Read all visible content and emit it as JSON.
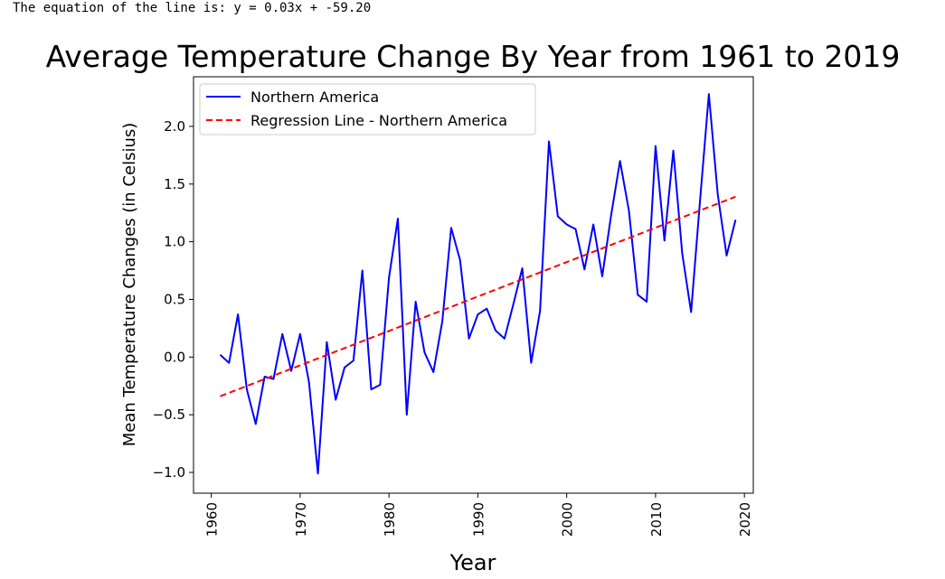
{
  "console": {
    "text": "The equation of the line is: y = 0.03x + -59.20"
  },
  "chart_data": {
    "type": "line",
    "title": "Average Temperature Change By Year from 1961 to 2019",
    "xlabel": "Year",
    "ylabel": "Mean Temperature Changes (in Celsius)",
    "xlim": [
      1958,
      2021
    ],
    "ylim": [
      -1.18,
      2.43
    ],
    "xticks": [
      1960,
      1970,
      1980,
      1990,
      2000,
      2010,
      2020
    ],
    "yticks": [
      -1.0,
      -0.5,
      0.0,
      0.5,
      1.0,
      1.5,
      2.0
    ],
    "ytick_labels": [
      "−1.0",
      "−0.5",
      "0.0",
      "0.5",
      "1.0",
      "1.5",
      "2.0"
    ],
    "legend_position": "top-left",
    "series": [
      {
        "name": "Northern America",
        "color": "#0000ff",
        "style": "solid",
        "x": [
          1961,
          1962,
          1963,
          1964,
          1965,
          1966,
          1967,
          1968,
          1969,
          1970,
          1971,
          1972,
          1973,
          1974,
          1975,
          1976,
          1977,
          1978,
          1979,
          1980,
          1981,
          1982,
          1983,
          1984,
          1985,
          1986,
          1987,
          1988,
          1989,
          1990,
          1991,
          1992,
          1993,
          1994,
          1995,
          1996,
          1997,
          1998,
          1999,
          2000,
          2001,
          2002,
          2003,
          2004,
          2005,
          2006,
          2007,
          2008,
          2009,
          2010,
          2011,
          2012,
          2013,
          2014,
          2015,
          2016,
          2017,
          2018,
          2019
        ],
        "y": [
          0.02,
          -0.05,
          0.37,
          -0.28,
          -0.58,
          -0.17,
          -0.19,
          0.2,
          -0.12,
          0.2,
          -0.22,
          -1.01,
          0.13,
          -0.37,
          -0.09,
          -0.03,
          0.75,
          -0.28,
          -0.24,
          0.69,
          1.2,
          -0.5,
          0.48,
          0.04,
          -0.13,
          0.31,
          1.12,
          0.84,
          0.16,
          0.37,
          0.42,
          0.23,
          0.16,
          0.46,
          0.77,
          -0.05,
          0.4,
          1.87,
          1.22,
          1.15,
          1.11,
          0.76,
          1.15,
          0.7,
          1.23,
          1.7,
          1.27,
          0.54,
          0.48,
          1.83,
          1.01,
          1.79,
          0.9,
          0.39,
          1.35,
          2.28,
          1.41,
          0.88,
          1.19
        ]
      },
      {
        "name": "Regression Line - Northern America",
        "color": "#ff0000",
        "style": "dashed",
        "x": [
          1961,
          2019
        ],
        "y": [
          -0.34,
          1.39
        ]
      }
    ]
  }
}
